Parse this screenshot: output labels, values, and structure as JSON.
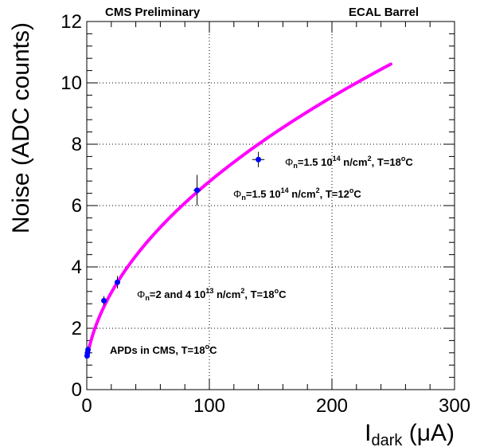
{
  "chart_data": {
    "type": "scatter",
    "header_left": "CMS Preliminary",
    "header_right": "ECAL Barrel",
    "ylabel": "Noise (ADC counts)",
    "xlabel_main": "I",
    "xlabel_sub": "dark",
    "xlabel_unit": " (μA)",
    "xlim": [
      0,
      300
    ],
    "ylim": [
      0,
      12
    ],
    "grid": true,
    "x_ticks": [
      0,
      100,
      200,
      300
    ],
    "y_ticks": [
      0,
      2,
      4,
      6,
      8,
      10,
      12
    ],
    "points": [
      {
        "x": 0.3,
        "y": 1.1,
        "ex": 0.3,
        "ey": 0.05
      },
      {
        "x": 0.6,
        "y": 1.2,
        "ex": 0.3,
        "ey": 0.05
      },
      {
        "x": 1.0,
        "y": 1.3,
        "ex": 0.4,
        "ey": 0.1
      },
      {
        "x": 14,
        "y": 2.9,
        "ex": 1.5,
        "ey": 0.15
      },
      {
        "x": 25,
        "y": 3.5,
        "ex": 2,
        "ey": 0.2
      },
      {
        "x": 90,
        "y": 6.5,
        "ex": 3,
        "ey": 0.5
      },
      {
        "x": 140,
        "y": 7.5,
        "ex": 5,
        "ey": 0.25
      }
    ],
    "fit_curve": {
      "color": "#ff00ff",
      "x_start": 0.5,
      "x_end": 248
    },
    "point_color": "#0000ff",
    "annotations": {
      "a1": {
        "phi": "Φ",
        "sub": "n",
        "text1": "=1.5 10",
        "sup1": "14",
        "text2": " n/cm",
        "sup2": "2",
        "text3": ", T=18",
        "sup3": "o",
        "text4": "C"
      },
      "a2": {
        "phi": "Φ",
        "sub": "n",
        "text1": "=1.5 10",
        "sup1": "14",
        "text2": " n/cm",
        "sup2": "2",
        "text3": ", T=12",
        "sup3": "o",
        "text4": "C"
      },
      "a3": {
        "phi": "Φ",
        "sub": "n",
        "text1": "=2 and 4 10",
        "sup1": "13",
        "text2": " n/cm",
        "sup2": "2",
        "text3": ", T=18",
        "sup3": "o",
        "text4": "C"
      },
      "a4": {
        "text1": "APDs in CMS, T=18",
        "sup3": "o",
        "text4": "C"
      }
    }
  }
}
